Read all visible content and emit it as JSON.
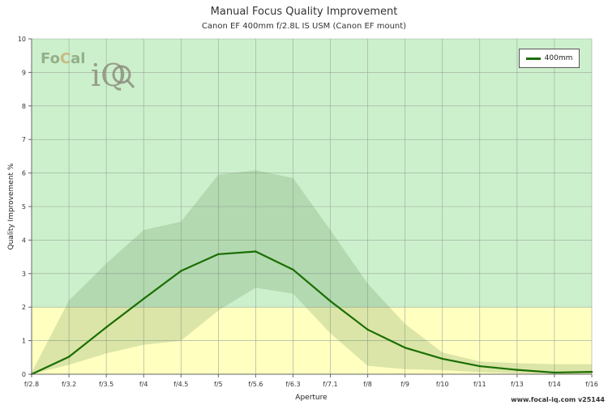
{
  "chart_data": {
    "type": "line",
    "title": "Manual Focus Quality Improvement",
    "subtitle": "Canon EF 400mm f/2.8L IS USM (Canon EF mount)",
    "xlabel": "Aperture",
    "ylabel": "Quality Improvement %",
    "categories": [
      "f/2.8",
      "f/3.2",
      "f/3.5",
      "f/4",
      "f/4.5",
      "f/5",
      "f/5.6",
      "f/6.3",
      "f/7.1",
      "f/8",
      "f/9",
      "f/10",
      "f/11",
      "f/13",
      "f/14",
      "f/16"
    ],
    "ylim": [
      0,
      10
    ],
    "yticks": [
      0,
      1,
      2,
      3,
      4,
      5,
      6,
      7,
      8,
      9,
      10
    ],
    "grid": true,
    "legend_position": "top-right",
    "bands": [
      {
        "from": 0,
        "to": 2,
        "color": "#ffffc0"
      },
      {
        "from": 2,
        "to": 10,
        "color": "#ccf0cc"
      }
    ],
    "series": [
      {
        "name": "400mm",
        "color": "#1a6e00",
        "values": [
          0,
          0.52,
          1.4,
          2.25,
          3.08,
          3.58,
          3.66,
          3.12,
          2.18,
          1.33,
          0.79,
          0.46,
          0.24,
          0.13,
          0.05,
          0.07
        ],
        "upper": [
          0.05,
          2.2,
          3.3,
          4.3,
          4.55,
          5.95,
          6.08,
          5.85,
          4.3,
          2.7,
          1.5,
          0.65,
          0.38,
          0.33,
          0.3,
          0.3
        ],
        "lower": [
          0,
          0.28,
          0.62,
          0.88,
          1.0,
          1.9,
          2.58,
          2.4,
          1.22,
          0.25,
          0.15,
          0.12,
          0.06,
          0.03,
          0.01,
          0.02
        ]
      }
    ]
  },
  "logo": {
    "text_fo": "Fo",
    "text_c": "C",
    "text_al": "al",
    "text_iq": "iQ"
  },
  "watermark": "www.focal-iq.com  v25144"
}
